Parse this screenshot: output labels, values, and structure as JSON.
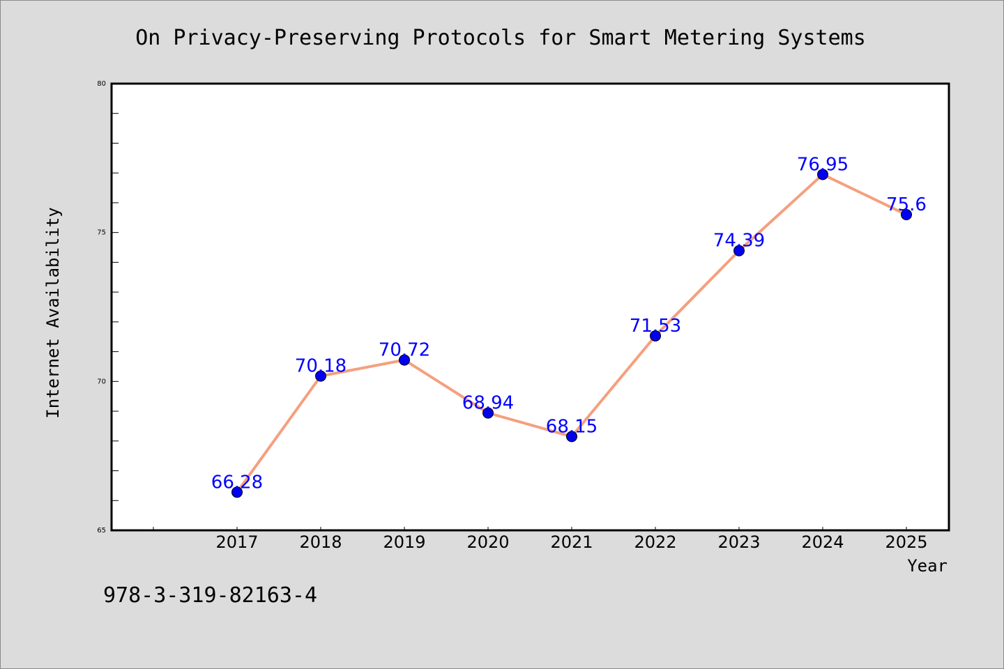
{
  "chart_data": {
    "type": "line",
    "title": "On Privacy-Preserving Protocols for Smart Metering Systems",
    "xlabel": "Year",
    "ylabel": "Internet Availability",
    "categories": [
      "2017",
      "2018",
      "2019",
      "2020",
      "2021",
      "2022",
      "2023",
      "2024",
      "2025"
    ],
    "series": [
      {
        "values": [
          66.28,
          70.18,
          70.72,
          68.94,
          68.15,
          71.53,
          74.39,
          76.95,
          75.6
        ],
        "data_labels": [
          "66.28",
          "70.18",
          "70.72",
          "68.94",
          "68.15",
          "71.53",
          "74.39",
          "76.95",
          "75.6"
        ],
        "line_color": "#f4a07e",
        "marker_color": "#0000ee"
      }
    ],
    "ylim": [
      65,
      80
    ],
    "yticks": [
      "65",
      "70",
      "75",
      "80"
    ],
    "grid": false,
    "label_color": "#0000ff"
  },
  "footer": {
    "isbn": "978-3-319-82163-4"
  }
}
